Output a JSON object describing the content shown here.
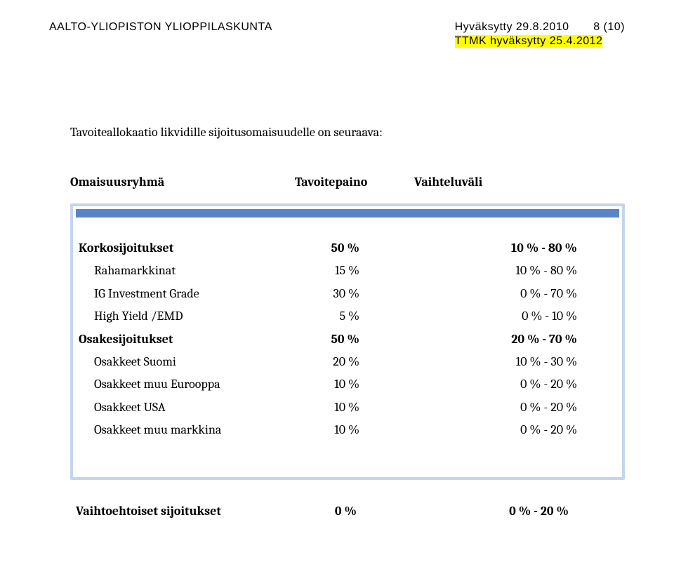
{
  "header": {
    "org": "AALTO-YLIOPISTON YLIOPPILASKUNTA",
    "approved": "Hyväksytty 29.8.2010",
    "pagenum": "8 (10)",
    "approved2": "TTMK hyväksytty 25.4.2012"
  },
  "intro": "Tavoiteallokaatio likvidille sijoitusomaisuudelle on seuraava:",
  "col_headers": {
    "c1": "Omaisuusryhmä",
    "c2": "Tavoitepaino",
    "c3": "Vaihteluväli"
  },
  "table": {
    "type": "table",
    "border_color": "#c4d5ec",
    "accent_color": "#5b84c4",
    "background_color": "#ffffff",
    "columns": [
      "Omaisuusryhmä",
      "Tavoitepaino",
      "Vaihteluväli"
    ],
    "rows": [
      {
        "label": "Korkosijoitukset",
        "weight": "50 %",
        "range": "10 % - 80 %",
        "bold": true,
        "sub": false
      },
      {
        "label": "Rahamarkkinat",
        "weight": "15 %",
        "range": "10 % - 80 %",
        "bold": false,
        "sub": true
      },
      {
        "label": "IG Investment Grade",
        "weight": "30 %",
        "range": "0 % - 70 %",
        "bold": false,
        "sub": true
      },
      {
        "label": "High Yield /EMD",
        "weight": "5 %",
        "range": "0 % - 10 %",
        "bold": false,
        "sub": true
      },
      {
        "label": "Osakesijoitukset",
        "weight": "50 %",
        "range": "20 % - 70 %",
        "bold": true,
        "sub": false
      },
      {
        "label": "Osakkeet Suomi",
        "weight": "20 %",
        "range": "10 % - 30 %",
        "bold": false,
        "sub": true
      },
      {
        "label": "Osakkeet muu Eurooppa",
        "weight": "10 %",
        "range": "0 % - 20 %",
        "bold": false,
        "sub": true
      },
      {
        "label": "Osakkeet USA",
        "weight": "10 %",
        "range": "0 % - 20 %",
        "bold": false,
        "sub": true
      },
      {
        "label": "Osakkeet muu markkina",
        "weight": "10 %",
        "range": "0 % - 20 %",
        "bold": false,
        "sub": true
      }
    ]
  },
  "footer": {
    "label": "Vaihtoehtoiset sijoitukset",
    "weight": "0 %",
    "range": "0 % - 20 %"
  }
}
